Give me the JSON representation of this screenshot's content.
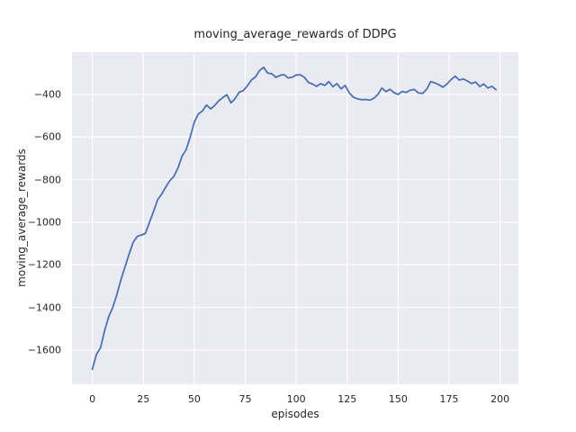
{
  "figure": {
    "title": "moving_average_rewards of DDPG",
    "xlabel": "episodes",
    "ylabel": "moving_average_rewards"
  },
  "colors": {
    "figure_bg": "#ffffff",
    "axes_bg": "#eaeaf2",
    "grid": "#ffffff",
    "line": "#4c72b0",
    "text": "#262626"
  },
  "chart_data": {
    "type": "line",
    "title": "moving_average_rewards of DDPG",
    "xlabel": "episodes",
    "ylabel": "moving_average_rewards",
    "xlim": [
      -10,
      209
    ],
    "ylim": [
      -1761,
      -202
    ],
    "grid": true,
    "legend_position": "none",
    "xticks": [
      0,
      25,
      50,
      75,
      100,
      125,
      150,
      175,
      200
    ],
    "xtick_labels": [
      "0",
      "25",
      "50",
      "75",
      "100",
      "125",
      "150",
      "175",
      "200"
    ],
    "yticks": [
      -1600,
      -1400,
      -1200,
      -1000,
      -800,
      -600,
      -400
    ],
    "ytick_labels": [
      "−1600",
      "−1400",
      "−1200",
      "−1000",
      "−800",
      "−600",
      "−400"
    ],
    "series": [
      {
        "name": "moving_average_rewards",
        "color": "#4c72b0",
        "x": [
          0,
          2,
          4,
          6,
          8,
          10,
          12,
          14,
          16,
          18,
          20,
          22,
          24,
          26,
          28,
          30,
          32,
          34,
          36,
          38,
          40,
          42,
          44,
          46,
          48,
          50,
          52,
          54,
          56,
          58,
          60,
          62,
          64,
          66,
          68,
          70,
          72,
          74,
          76,
          78,
          80,
          82,
          84,
          86,
          88,
          90,
          92,
          94,
          96,
          98,
          100,
          102,
          104,
          106,
          108,
          110,
          112,
          114,
          116,
          118,
          120,
          122,
          124,
          126,
          128,
          130,
          132,
          134,
          136,
          138,
          140,
          142,
          144,
          146,
          148,
          150,
          152,
          154,
          156,
          158,
          160,
          162,
          164,
          166,
          168,
          170,
          172,
          174,
          176,
          178,
          180,
          182,
          184,
          186,
          188,
          190,
          192,
          194,
          196,
          198
        ],
        "y": [
          -1690,
          -1620,
          -1590,
          -1510,
          -1443,
          -1400,
          -1340,
          -1270,
          -1210,
          -1150,
          -1095,
          -1067,
          -1060,
          -1053,
          -1000,
          -950,
          -895,
          -868,
          -835,
          -805,
          -785,
          -745,
          -690,
          -660,
          -600,
          -530,
          -492,
          -478,
          -450,
          -468,
          -452,
          -430,
          -415,
          -402,
          -440,
          -420,
          -390,
          -383,
          -360,
          -333,
          -318,
          -288,
          -273,
          -300,
          -303,
          -320,
          -311,
          -307,
          -323,
          -320,
          -309,
          -308,
          -320,
          -344,
          -352,
          -362,
          -350,
          -358,
          -340,
          -364,
          -350,
          -374,
          -358,
          -392,
          -413,
          -421,
          -425,
          -424,
          -427,
          -419,
          -401,
          -370,
          -387,
          -376,
          -392,
          -400,
          -386,
          -391,
          -380,
          -377,
          -394,
          -395,
          -376,
          -340,
          -346,
          -355,
          -366,
          -351,
          -330,
          -315,
          -333,
          -328,
          -337,
          -349,
          -342,
          -363,
          -351,
          -370,
          -362,
          -378
        ]
      }
    ]
  }
}
